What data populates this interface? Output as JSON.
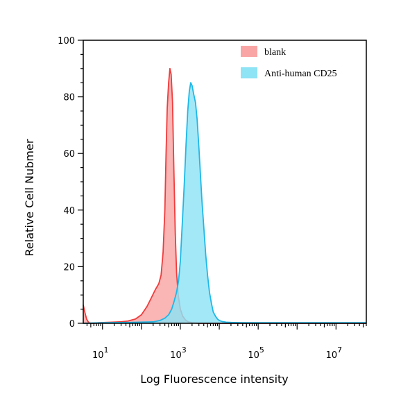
{
  "chart_data": {
    "type": "area",
    "xlabel": "Log Fluorescence intensity",
    "ylabel": "Relative Cell Nubmer",
    "xscale": "log",
    "xlim": [
      3.2,
      60000000.0
    ],
    "ylim": [
      0,
      100
    ],
    "x_ticks": [
      {
        "base": "10",
        "exp": "1",
        "value": 10
      },
      {
        "base": "10",
        "exp": "3",
        "value": 1000
      },
      {
        "base": "10",
        "exp": "5",
        "value": 100000
      },
      {
        "base": "10",
        "exp": "7",
        "value": 10000000
      }
    ],
    "y_ticks": [
      "0",
      "20",
      "40",
      "60",
      "80",
      "100"
    ],
    "legend_position": "top-right",
    "series": [
      {
        "name": "blank",
        "fill": "#F9A5A5",
        "stroke": "#F03C3C",
        "x": [
          3.2,
          3.5,
          3.9,
          4.4,
          5,
          6,
          8,
          12,
          18,
          28,
          45,
          70,
          100,
          140,
          180,
          230,
          280,
          320,
          360,
          400,
          430,
          460,
          500,
          540,
          580,
          630,
          680,
          740,
          800,
          880,
          1000,
          1150,
          1350,
          1600,
          2000,
          3000,
          5000,
          10000.0,
          100000.0,
          1000000.0,
          10000000.0,
          60000000.0
        ],
        "y": [
          6.5,
          4,
          1.5,
          0.3,
          0,
          0,
          0.2,
          0.3,
          0.4,
          0.5,
          0.8,
          1.5,
          3,
          6,
          9,
          12,
          14,
          17,
          25,
          40,
          60,
          76,
          85,
          90,
          88,
          78,
          55,
          32,
          18,
          10,
          5,
          2.5,
          1.2,
          0.5,
          0.2,
          0,
          0,
          0,
          0,
          0,
          0,
          0
        ]
      },
      {
        "name": "Anti-human CD25",
        "fill": "#8EE3F5",
        "stroke": "#1FB8E8",
        "x": [
          3.2,
          10,
          50,
          200,
          300,
          400,
          500,
          600,
          700,
          800,
          900,
          1000,
          1100,
          1250,
          1400,
          1550,
          1700,
          1850,
          2000,
          2200,
          2450,
          2700,
          3000,
          3300,
          3600,
          4000,
          4500,
          5000,
          5600,
          6300,
          7000,
          8000,
          9000,
          10000,
          12000,
          15000,
          20000,
          40000,
          100000.0,
          1000000.0,
          10000000.0,
          60000000.0
        ],
        "y": [
          0,
          0.2,
          0.3,
          0.5,
          1,
          1.8,
          3,
          5,
          8,
          11,
          15,
          22,
          33,
          48,
          63,
          75,
          82,
          85,
          84,
          81,
          78,
          72,
          62,
          52,
          43,
          34,
          24,
          17,
          11,
          7,
          4,
          2.5,
          1.5,
          1,
          0.6,
          0.4,
          0.3,
          0.2,
          0.2,
          0.2,
          0.2,
          0.2
        ]
      }
    ]
  }
}
